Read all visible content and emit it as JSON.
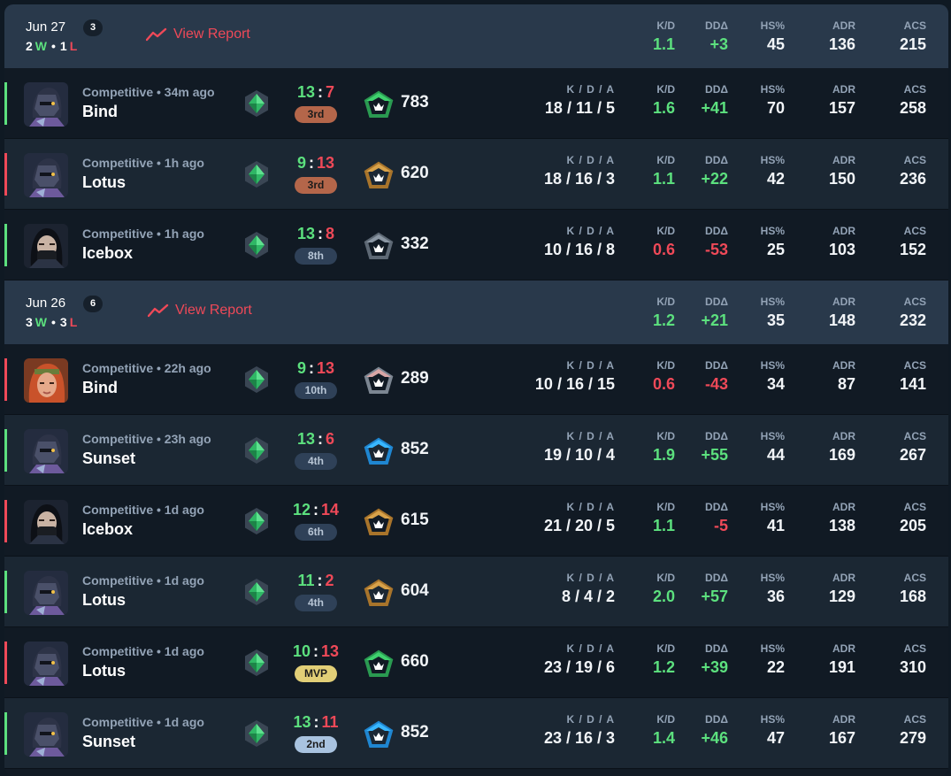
{
  "colors": {
    "win": "#5ce07e",
    "loss": "#ef4958",
    "header_bg": "#29394b",
    "row_dark": "#111a24",
    "row_light": "#1b2733"
  },
  "stat_labels": {
    "kda": "K / D / A",
    "kd": "K/D",
    "dd": "DDΔ",
    "hs": "HS%",
    "adr": "ADR",
    "acs": "ACS"
  },
  "separator": ":",
  "groups": [
    {
      "date": "Jun 27",
      "count": "3",
      "wins": "2",
      "win_letter": "W",
      "dot": "•",
      "losses": "1",
      "loss_letter": "L",
      "view_report": "View Report",
      "report_icon": "trend-line-icon",
      "summary": {
        "kd": "1.1",
        "dd": "+3",
        "hs": "45",
        "adr": "136",
        "acs": "215"
      },
      "matches": [
        {
          "result": "win",
          "agent": "helmet-agent",
          "mode": "Competitive • 34m ago",
          "map": "Bind",
          "score_a": "13",
          "score_b": "7",
          "place": "3rd",
          "place_style": "orange",
          "rr_tier": "green",
          "rr": "783",
          "kda": "18 / 11 / 5",
          "kd": "1.6",
          "dd": "+41",
          "hs": "70",
          "adr": "157",
          "acs": "258"
        },
        {
          "result": "loss",
          "agent": "helmet-agent",
          "mode": "Competitive • 1h ago",
          "map": "Lotus",
          "score_a": "9",
          "score_b": "13",
          "place": "3rd",
          "place_style": "orange",
          "rr_tier": "gold",
          "rr": "620",
          "kda": "18 / 16 / 3",
          "kd": "1.1",
          "dd": "+22",
          "hs": "42",
          "adr": "150",
          "acs": "236"
        },
        {
          "result": "win",
          "agent": "masked-agent",
          "mode": "Competitive • 1h ago",
          "map": "Icebox",
          "score_a": "13",
          "score_b": "8",
          "place": "8th",
          "place_style": "slate",
          "rr_tier": "grey",
          "rr": "332",
          "kda": "10 / 16 / 8",
          "kd": "0.6",
          "dd": "-53",
          "hs": "25",
          "adr": "103",
          "acs": "152"
        }
      ]
    },
    {
      "date": "Jun 26",
      "count": "6",
      "wins": "3",
      "win_letter": "W",
      "dot": "•",
      "losses": "3",
      "loss_letter": "L",
      "view_report": "View Report",
      "report_icon": "trend-line-icon",
      "summary": {
        "kd": "1.2",
        "dd": "+21",
        "hs": "35",
        "adr": "148",
        "acs": "232"
      },
      "matches": [
        {
          "result": "loss",
          "agent": "red-hair-agent",
          "mode": "Competitive • 22h ago",
          "map": "Bind",
          "score_a": "9",
          "score_b": "13",
          "place": "10th",
          "place_style": "slate",
          "rr_tier": "pink",
          "rr": "289",
          "kda": "10 / 16 / 15",
          "kd": "0.6",
          "dd": "-43",
          "hs": "34",
          "adr": "87",
          "acs": "141"
        },
        {
          "result": "win",
          "agent": "helmet-agent",
          "mode": "Competitive • 23h ago",
          "map": "Sunset",
          "score_a": "13",
          "score_b": "6",
          "place": "4th",
          "place_style": "slate",
          "rr_tier": "blue",
          "rr": "852",
          "kda": "19 / 10 / 4",
          "kd": "1.9",
          "dd": "+55",
          "hs": "44",
          "adr": "169",
          "acs": "267"
        },
        {
          "result": "loss",
          "agent": "masked-agent",
          "mode": "Competitive • 1d ago",
          "map": "Icebox",
          "score_a": "12",
          "score_b": "14",
          "place": "6th",
          "place_style": "slate",
          "rr_tier": "gold",
          "rr": "615",
          "kda": "21 / 20 / 5",
          "kd": "1.1",
          "dd": "-5",
          "hs": "41",
          "adr": "138",
          "acs": "205"
        },
        {
          "result": "win",
          "agent": "helmet-agent",
          "mode": "Competitive • 1d ago",
          "map": "Lotus",
          "score_a": "11",
          "score_b": "2",
          "place": "4th",
          "place_style": "slate",
          "rr_tier": "gold",
          "rr": "604",
          "kda": "8 / 4 / 2",
          "kd": "2.0",
          "dd": "+57",
          "hs": "36",
          "adr": "129",
          "acs": "168"
        },
        {
          "result": "loss",
          "agent": "helmet-agent",
          "mode": "Competitive • 1d ago",
          "map": "Lotus",
          "score_a": "10",
          "score_b": "13",
          "place": "MVP",
          "place_style": "gold",
          "rr_tier": "green",
          "rr": "660",
          "kda": "23 / 19 / 6",
          "kd": "1.2",
          "dd": "+39",
          "hs": "22",
          "adr": "191",
          "acs": "310"
        },
        {
          "result": "win",
          "agent": "helmet-agent",
          "mode": "Competitive • 1d ago",
          "map": "Sunset",
          "score_a": "13",
          "score_b": "11",
          "place": "2nd",
          "place_style": "light-blue",
          "rr_tier": "blue",
          "rr": "852",
          "kda": "23 / 16 / 3",
          "kd": "1.4",
          "dd": "+46",
          "hs": "47",
          "adr": "167",
          "acs": "279"
        }
      ]
    }
  ]
}
